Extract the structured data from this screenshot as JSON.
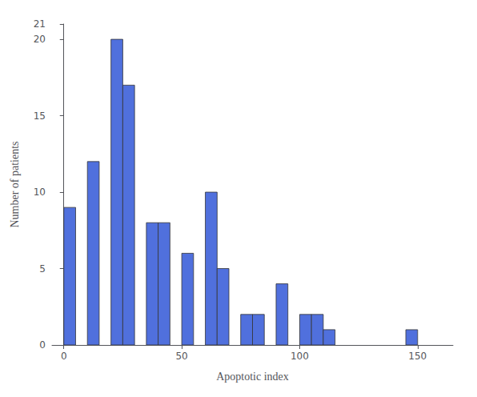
{
  "chart_data": {
    "type": "histogram",
    "x": [
      0,
      5,
      10,
      15,
      20,
      25,
      30,
      35,
      40,
      45,
      50,
      55,
      60,
      65,
      70,
      75,
      80,
      85,
      90,
      95,
      100,
      105,
      110,
      145
    ],
    "values": [
      9,
      0,
      12,
      0,
      20,
      17,
      0,
      8,
      8,
      0,
      6,
      0,
      10,
      5,
      0,
      2,
      2,
      0,
      4,
      0,
      2,
      2,
      1,
      1
    ],
    "bin_width": 5,
    "xlabel": "Apoptotic index",
    "ylabel": "Number of patients",
    "xlim": [
      -5,
      165
    ],
    "ylim": [
      0,
      21
    ],
    "xticks": [
      0,
      50,
      100,
      150
    ],
    "yticks": [
      0,
      5,
      10,
      15,
      20
    ],
    "grid": false
  }
}
